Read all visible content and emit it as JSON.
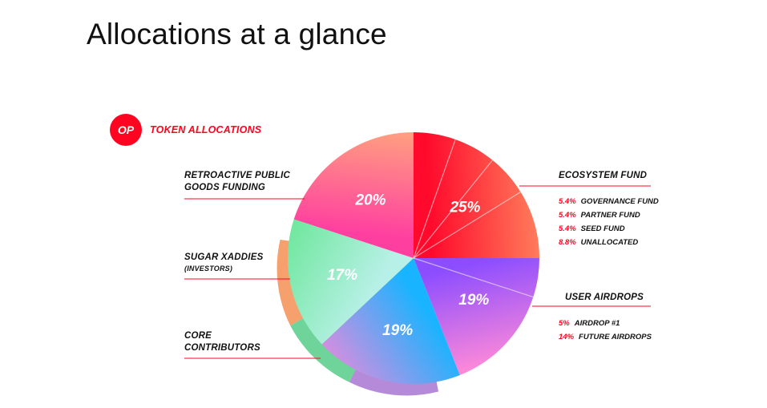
{
  "header": {
    "title": "Allocations at a glance"
  },
  "badge": {
    "logo_text": "OP",
    "caption": "TOKEN ALLOCATIONS"
  },
  "colors": {
    "accent": "#ff0420",
    "leader_line": "#ff0420"
  },
  "chart_data": {
    "type": "pie",
    "title": "",
    "slices": [
      {
        "name": "ECOSYSTEM FUND",
        "value": 25,
        "label": "25%",
        "colors": [
          "#ff0a2c",
          "#ff7a5a"
        ],
        "breakdown": [
          {
            "pct": "5.4%",
            "name": "GOVERNANCE FUND"
          },
          {
            "pct": "5.4%",
            "name": "PARTNER FUND"
          },
          {
            "pct": "5.4%",
            "name": "SEED FUND"
          },
          {
            "pct": "8.8%",
            "name": "UNALLOCATED"
          }
        ]
      },
      {
        "name": "USER AIRDROPS",
        "value": 19,
        "label": "19%",
        "colors": [
          "#8c4dff",
          "#ff8ad8"
        ],
        "breakdown": [
          {
            "pct": "5%",
            "name": "AIRDROP #1"
          },
          {
            "pct": "14%",
            "name": "FUTURE AIRDROPS"
          }
        ]
      },
      {
        "name": "CORE CONTRIBUTORS",
        "value": 19,
        "label": "19%",
        "colors": [
          "#18b4ff",
          "#d48ee0"
        ],
        "breakdown": []
      },
      {
        "name": "SUGAR XADDIES",
        "subname": "(INVESTORS)",
        "value": 17,
        "label": "17%",
        "colors": [
          "#b7f0e6",
          "#6ee79c"
        ],
        "breakdown": []
      },
      {
        "name": "RETROACTIVE PUBLIC GOODS FUNDING",
        "value": 20,
        "label": "20%",
        "colors": [
          "#ff3fa0",
          "#ffa080"
        ],
        "breakdown": []
      }
    ]
  }
}
